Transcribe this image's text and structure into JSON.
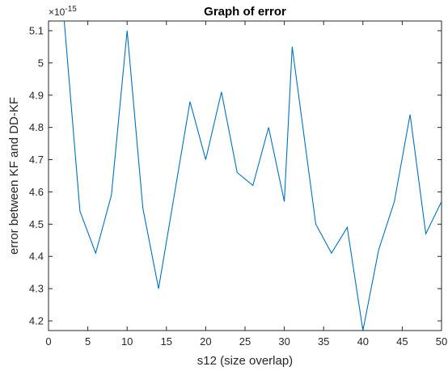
{
  "chart_data": {
    "type": "line",
    "title": "Graph of error",
    "xlabel": "s12 (size overlap)",
    "ylabel": "error between KF and DD-KF",
    "y_exponent_label": "×10",
    "y_exponent_power": "-15",
    "xlim": [
      0,
      50
    ],
    "ylim": [
      4.17,
      5.13
    ],
    "x_ticks": [
      0,
      5,
      10,
      15,
      20,
      25,
      30,
      35,
      40,
      45,
      50
    ],
    "x_tick_labels": [
      "0",
      "5",
      "10",
      "15",
      "20",
      "25",
      "30",
      "35",
      "40",
      "45",
      "50"
    ],
    "y_ticks": [
      4.2,
      4.3,
      4.4,
      4.5,
      4.6,
      4.7,
      4.8,
      4.9,
      5,
      5.1
    ],
    "y_tick_labels": [
      "4.2",
      "4.3",
      "4.4",
      "4.5",
      "4.6",
      "4.7",
      "4.8",
      "4.9",
      "5",
      "5.1"
    ],
    "grid": false,
    "series": [
      {
        "color": "#0072BD",
        "x": [
          2,
          4,
          6,
          8,
          10,
          12,
          14,
          16,
          18,
          20,
          22,
          24,
          26,
          28,
          30,
          31,
          34,
          36,
          38,
          40,
          42,
          44,
          46,
          48,
          50
        ],
        "y": [
          5.13,
          4.54,
          4.41,
          4.59,
          5.1,
          4.55,
          4.3,
          4.59,
          4.88,
          4.7,
          4.91,
          4.66,
          4.62,
          4.8,
          4.57,
          5.05,
          4.5,
          4.41,
          4.49,
          4.17,
          4.42,
          4.57,
          4.84,
          4.47,
          4.57
        ]
      }
    ]
  }
}
